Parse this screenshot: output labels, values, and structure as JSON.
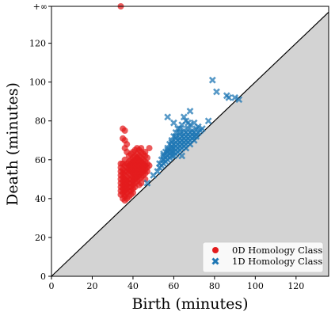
{
  "chart_data": {
    "type": "scatter",
    "xlabel": "Birth (minutes)",
    "ylabel": "Death (minutes)",
    "xlim": [
      0,
      136
    ],
    "ylim": [
      0,
      139
    ],
    "infinity_label": "+∞",
    "infinity_value": 139,
    "x_ticks": [
      0,
      20,
      40,
      60,
      80,
      100,
      120
    ],
    "y_ticks": [
      0,
      20,
      40,
      60,
      80,
      100,
      120
    ],
    "diagonal": true,
    "grid": false,
    "legend_position": "lower right",
    "series": [
      {
        "name": "0D Homology Class",
        "marker": "circle",
        "color": "#e31a1c",
        "points": [
          [
            34,
            139
          ],
          [
            35,
            76
          ],
          [
            36,
            75
          ],
          [
            36,
            70
          ],
          [
            37,
            68
          ],
          [
            36,
            66
          ],
          [
            37,
            64
          ],
          [
            35,
            71
          ],
          [
            34,
            58
          ],
          [
            34,
            56
          ],
          [
            34,
            54
          ],
          [
            34,
            52
          ],
          [
            34,
            50
          ],
          [
            34,
            48
          ],
          [
            34,
            46
          ],
          [
            34,
            44
          ],
          [
            34,
            42
          ],
          [
            35,
            40
          ],
          [
            36,
            39
          ],
          [
            35,
            58
          ],
          [
            35,
            55
          ],
          [
            35,
            53
          ],
          [
            35,
            51
          ],
          [
            35,
            49
          ],
          [
            35,
            47
          ],
          [
            35,
            45
          ],
          [
            35,
            43
          ],
          [
            36,
            41
          ],
          [
            36,
            57
          ],
          [
            36,
            54
          ],
          [
            36,
            52
          ],
          [
            36,
            50
          ],
          [
            36,
            48
          ],
          [
            36,
            46
          ],
          [
            36,
            44
          ],
          [
            36,
            42
          ],
          [
            37,
            40
          ],
          [
            37,
            58
          ],
          [
            37,
            56
          ],
          [
            37,
            54
          ],
          [
            37,
            51
          ],
          [
            37,
            49
          ],
          [
            37,
            47
          ],
          [
            37,
            45
          ],
          [
            37,
            43
          ],
          [
            38,
            41
          ],
          [
            38,
            59
          ],
          [
            38,
            57
          ],
          [
            38,
            55
          ],
          [
            38,
            53
          ],
          [
            38,
            50
          ],
          [
            38,
            48
          ],
          [
            38,
            46
          ],
          [
            38,
            44
          ],
          [
            39,
            42
          ],
          [
            39,
            60
          ],
          [
            39,
            58
          ],
          [
            39,
            56
          ],
          [
            39,
            54
          ],
          [
            39,
            52
          ],
          [
            39,
            50
          ],
          [
            39,
            48
          ],
          [
            39,
            46
          ],
          [
            39,
            44
          ],
          [
            40,
            43
          ],
          [
            40,
            61
          ],
          [
            40,
            59
          ],
          [
            40,
            57
          ],
          [
            40,
            55
          ],
          [
            40,
            53
          ],
          [
            40,
            51
          ],
          [
            40,
            49
          ],
          [
            40,
            47
          ],
          [
            40,
            45
          ],
          [
            41,
            62
          ],
          [
            41,
            60
          ],
          [
            41,
            58
          ],
          [
            41,
            56
          ],
          [
            41,
            54
          ],
          [
            41,
            52
          ],
          [
            41,
            50
          ],
          [
            41,
            48
          ],
          [
            41,
            46
          ],
          [
            42,
            63
          ],
          [
            42,
            61
          ],
          [
            42,
            59
          ],
          [
            42,
            57
          ],
          [
            42,
            55
          ],
          [
            42,
            53
          ],
          [
            42,
            51
          ],
          [
            42,
            49
          ],
          [
            43,
            47
          ],
          [
            43,
            62
          ],
          [
            43,
            60
          ],
          [
            43,
            58
          ],
          [
            43,
            56
          ],
          [
            43,
            54
          ],
          [
            43,
            52
          ],
          [
            43,
            50
          ],
          [
            44,
            48
          ],
          [
            44,
            64
          ],
          [
            44,
            61
          ],
          [
            44,
            59
          ],
          [
            44,
            57
          ],
          [
            44,
            55
          ],
          [
            44,
            53
          ],
          [
            44,
            51
          ],
          [
            45,
            63
          ],
          [
            45,
            60
          ],
          [
            45,
            58
          ],
          [
            45,
            56
          ],
          [
            45,
            54
          ],
          [
            45,
            52
          ],
          [
            46,
            50
          ],
          [
            46,
            62
          ],
          [
            46,
            59
          ],
          [
            46,
            57
          ],
          [
            46,
            55
          ],
          [
            46,
            53
          ],
          [
            47,
            61
          ],
          [
            47,
            58
          ],
          [
            47,
            56
          ],
          [
            47,
            54
          ],
          [
            48,
            66
          ],
          [
            48,
            57
          ],
          [
            42,
            66
          ],
          [
            43,
            65
          ],
          [
            40,
            64
          ],
          [
            38,
            62
          ],
          [
            36,
            60
          ],
          [
            44,
            66
          ],
          [
            46,
            64
          ],
          [
            41,
            65
          ],
          [
            39,
            63
          ]
        ]
      },
      {
        "name": "1D Homology Class",
        "marker": "x",
        "color": "#1f77b4",
        "points": [
          [
            47,
            48
          ],
          [
            50,
            52
          ],
          [
            52,
            54
          ],
          [
            53,
            56
          ],
          [
            54,
            57
          ],
          [
            55,
            58
          ],
          [
            55,
            60
          ],
          [
            56,
            59
          ],
          [
            56,
            61
          ],
          [
            57,
            60
          ],
          [
            57,
            62
          ],
          [
            58,
            61
          ],
          [
            58,
            63
          ],
          [
            58,
            65
          ],
          [
            59,
            62
          ],
          [
            59,
            64
          ],
          [
            59,
            66
          ],
          [
            60,
            62
          ],
          [
            60,
            64
          ],
          [
            60,
            66
          ],
          [
            60,
            68
          ],
          [
            61,
            63
          ],
          [
            61,
            65
          ],
          [
            61,
            67
          ],
          [
            61,
            69
          ],
          [
            62,
            64
          ],
          [
            62,
            66
          ],
          [
            62,
            68
          ],
          [
            62,
            70
          ],
          [
            63,
            65
          ],
          [
            63,
            67
          ],
          [
            63,
            69
          ],
          [
            63,
            71
          ],
          [
            64,
            66
          ],
          [
            64,
            68
          ],
          [
            64,
            70
          ],
          [
            64,
            72
          ],
          [
            65,
            67
          ],
          [
            65,
            69
          ],
          [
            65,
            71
          ],
          [
            65,
            73
          ],
          [
            66,
            68
          ],
          [
            66,
            70
          ],
          [
            66,
            72
          ],
          [
            66,
            74
          ],
          [
            67,
            69
          ],
          [
            67,
            71
          ],
          [
            67,
            73
          ],
          [
            68,
            70
          ],
          [
            68,
            72
          ],
          [
            68,
            74
          ],
          [
            69,
            71
          ],
          [
            69,
            73
          ],
          [
            70,
            72
          ],
          [
            70,
            74
          ],
          [
            71,
            73
          ],
          [
            72,
            74
          ],
          [
            73,
            75
          ],
          [
            74,
            76
          ],
          [
            54,
            60
          ],
          [
            55,
            62
          ],
          [
            56,
            64
          ],
          [
            57,
            66
          ],
          [
            58,
            68
          ],
          [
            59,
            70
          ],
          [
            60,
            72
          ],
          [
            61,
            74
          ],
          [
            62,
            76
          ],
          [
            64,
            78
          ],
          [
            66,
            80
          ],
          [
            65,
            82
          ],
          [
            68,
            78
          ],
          [
            70,
            79
          ],
          [
            57,
            65
          ],
          [
            59,
            67
          ],
          [
            61,
            71
          ],
          [
            63,
            73
          ],
          [
            65,
            75
          ],
          [
            67,
            76
          ],
          [
            69,
            75
          ],
          [
            71,
            76
          ],
          [
            72,
            77
          ],
          [
            53,
            58
          ],
          [
            55,
            63
          ],
          [
            57,
            64
          ],
          [
            59,
            69
          ],
          [
            61,
            72
          ],
          [
            63,
            74
          ],
          [
            64,
            62
          ],
          [
            66,
            66
          ],
          [
            68,
            68
          ],
          [
            70,
            70
          ],
          [
            57,
            82
          ],
          [
            60,
            79
          ],
          [
            63,
            76
          ],
          [
            68,
            85
          ],
          [
            67,
            79
          ],
          [
            71,
            72
          ],
          [
            77,
            80
          ],
          [
            79,
            101
          ],
          [
            81,
            95
          ],
          [
            86,
            93
          ],
          [
            87,
            92
          ],
          [
            90,
            92
          ],
          [
            92,
            91
          ]
        ]
      }
    ]
  }
}
